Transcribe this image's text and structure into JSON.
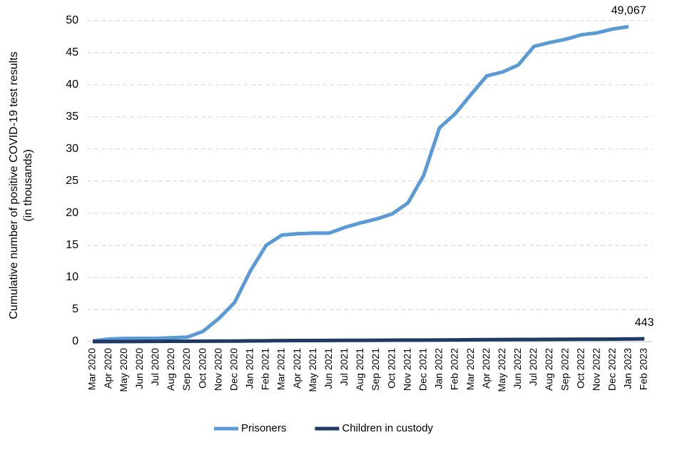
{
  "chart_data": {
    "type": "line",
    "y_label": [
      "Cumulative number of positive  COVID-19 test results",
      "(in thousands)"
    ],
    "categories": [
      "Mar 2020",
      "Apr 2020",
      "May 2020",
      "Jun 2020",
      "Jul 2020",
      "Aug 2020",
      "Sep 2020",
      "Oct 2020",
      "Nov 2020",
      "Dec 2020",
      "Jan 2021",
      "Feb 2021",
      "Mar 2021",
      "Apr 2021",
      "May 2021",
      "Jun 2021",
      "Jul 2021",
      "Aug 2021",
      "Sep 2021",
      "Oct 2021",
      "Nov 2021",
      "Dec 2021",
      "Jan 2022",
      "Feb 2022",
      "Mar 2022",
      "Apr 2022",
      "May 2022",
      "Jun 2022",
      "Jul 2022",
      "Aug 2022",
      "Sep 2022",
      "Oct 2022",
      "Nov 2022",
      "Dec 2022",
      "Jan 2023",
      "Feb 2023"
    ],
    "series": [
      {
        "name": "Prisoners",
        "color": "#5b9bd5",
        "values": [
          0.1,
          0.4,
          0.5,
          0.5,
          0.5,
          0.6,
          0.7,
          1.6,
          3.6,
          6.1,
          11.0,
          15.0,
          16.6,
          16.8,
          16.9,
          16.9,
          17.8,
          18.5,
          19.1,
          19.9,
          21.6,
          25.9,
          33.3,
          35.5,
          38.5,
          41.4,
          42.0,
          43.1,
          46.0,
          46.6,
          47.1,
          47.8,
          48.1,
          48.7,
          49.067,
          null
        ],
        "value_labels": [
          null,
          null,
          null,
          null,
          null,
          null,
          null,
          null,
          null,
          null,
          null,
          null,
          null,
          null,
          null,
          null,
          null,
          null,
          null,
          null,
          null,
          null,
          null,
          null,
          null,
          null,
          null,
          null,
          null,
          null,
          null,
          null,
          null,
          null,
          "49,067",
          null
        ]
      },
      {
        "name": "Children in custody",
        "color": "#1f3864",
        "values": [
          0.002,
          0.01,
          0.02,
          0.03,
          0.04,
          0.05,
          0.06,
          0.07,
          0.08,
          0.09,
          0.11,
          0.13,
          0.15,
          0.16,
          0.17,
          0.18,
          0.19,
          0.2,
          0.21,
          0.22,
          0.23,
          0.24,
          0.25,
          0.27,
          0.29,
          0.31,
          0.32,
          0.33,
          0.34,
          0.35,
          0.36,
          0.37,
          0.38,
          0.39,
          0.41,
          0.443
        ],
        "value_labels": [
          null,
          null,
          null,
          null,
          null,
          null,
          null,
          null,
          null,
          null,
          null,
          null,
          null,
          null,
          null,
          null,
          null,
          null,
          null,
          null,
          null,
          null,
          null,
          null,
          null,
          null,
          null,
          null,
          null,
          null,
          null,
          null,
          null,
          null,
          null,
          "443"
        ]
      }
    ],
    "ylim": [
      0,
      50
    ],
    "yticks": [
      0,
      5,
      10,
      15,
      20,
      25,
      30,
      35,
      40,
      45,
      50
    ],
    "grid": true
  }
}
